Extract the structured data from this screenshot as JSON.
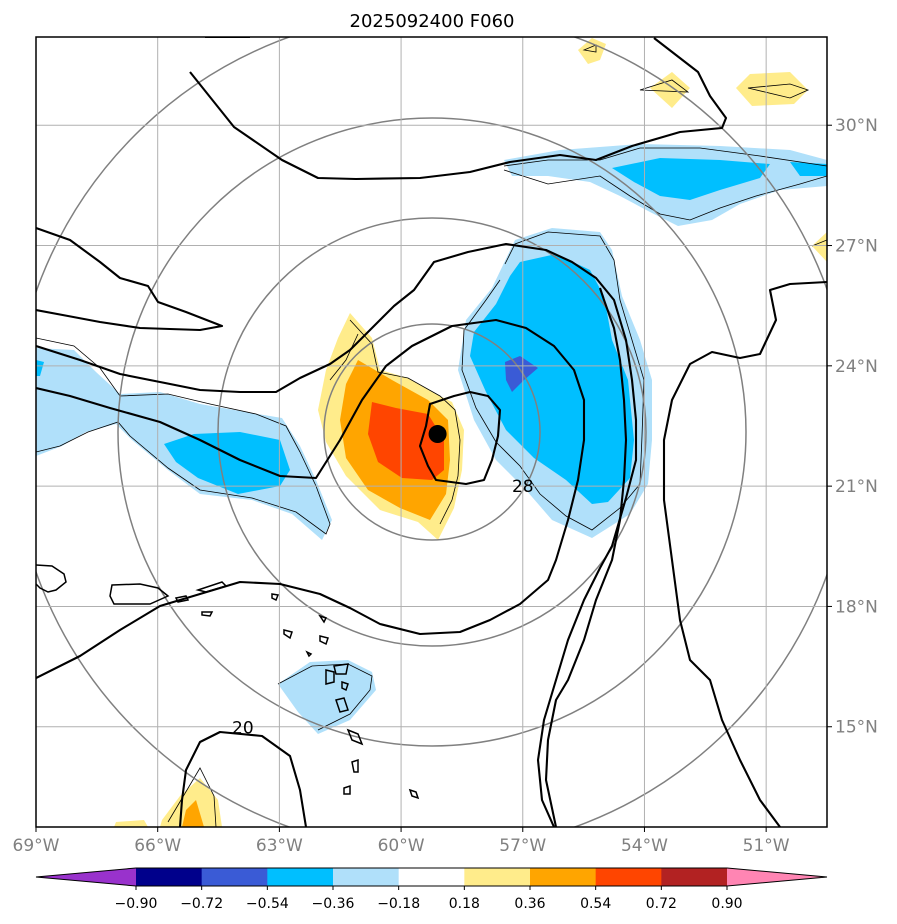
{
  "chart_data": {
    "type": "contour_map",
    "title": "2025092400 F060",
    "extent": {
      "lon": [
        -69,
        -49.5
      ],
      "lat": [
        12.5,
        32.2
      ]
    },
    "x_ticks": [
      {
        "value": -69,
        "label": "69°W"
      },
      {
        "value": -66,
        "label": "66°W"
      },
      {
        "value": -63,
        "label": "63°W"
      },
      {
        "value": -60,
        "label": "60°W"
      },
      {
        "value": -57,
        "label": "57°W"
      },
      {
        "value": -54,
        "label": "54°W"
      },
      {
        "value": -51,
        "label": "51°W"
      }
    ],
    "y_ticks": [
      {
        "value": 30,
        "label": "30°N"
      },
      {
        "value": 27,
        "label": "27°N"
      },
      {
        "value": 24,
        "label": "24°N"
      },
      {
        "value": 21,
        "label": "21°N"
      },
      {
        "value": 18,
        "label": "18°N"
      },
      {
        "value": 15,
        "label": "15°N"
      }
    ],
    "center": {
      "lon": -59.1,
      "lat": 22.3
    },
    "contour_labels": [
      {
        "text": "28",
        "lon": -57.0,
        "lat": 21.0
      },
      {
        "text": "20",
        "lon": -63.9,
        "lat": 14.98
      }
    ],
    "colorbar": {
      "levels": [
        -0.9,
        -0.72,
        -0.54,
        -0.36,
        -0.18,
        0.18,
        0.36,
        0.54,
        0.72,
        0.9
      ],
      "labels": [
        "−0.90",
        "−0.72",
        "−0.54",
        "−0.36",
        "−0.18",
        "0.18",
        "0.36",
        "0.54",
        "0.72",
        "0.90"
      ],
      "colors": [
        "#9932cc",
        "#00008b",
        "#3a5bd6",
        "#00bfff",
        "#b0e0fa",
        "#ffffff",
        "#ffec8b",
        "#ffa500",
        "#ff4500",
        "#b22222",
        "#ff85b3"
      ],
      "extend": "both"
    }
  }
}
